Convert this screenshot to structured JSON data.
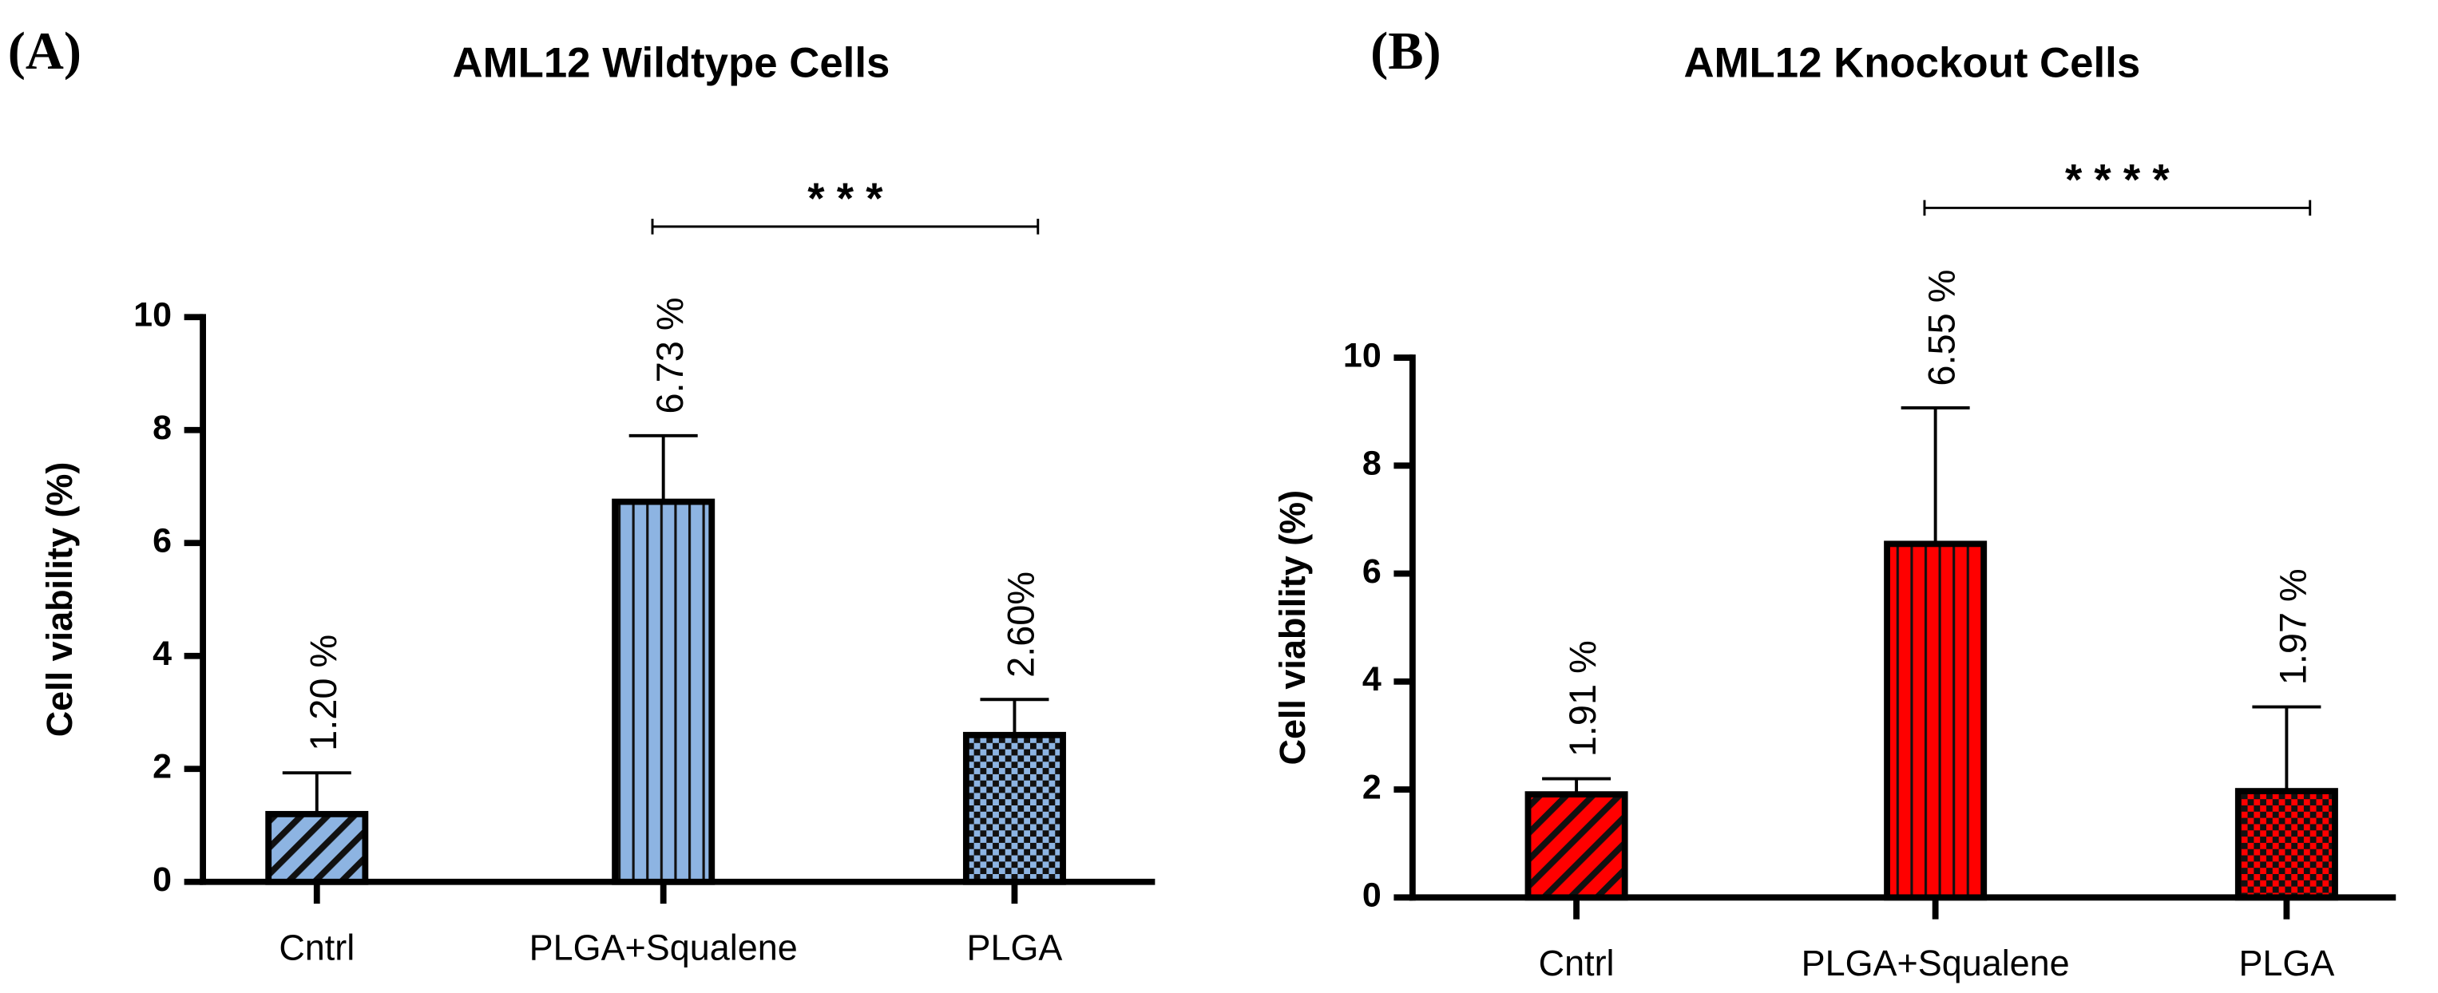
{
  "chart_data": [
    {
      "type": "bar",
      "panel_label": "(A)",
      "title": "AML12 Wildtype Cells",
      "ylabel": "Cell viability (%)",
      "categories": [
        "Cntrl",
        "PLGA+Squalene",
        "PLGA"
      ],
      "values": [
        1.2,
        6.73,
        2.6
      ],
      "errors": [
        0.73,
        1.17,
        0.63
      ],
      "value_labels": [
        "1.20 %",
        "6.73 %",
        "2.60%"
      ],
      "color": "#8db4e2",
      "patterns": [
        "diagonal",
        "vertical",
        "checker"
      ],
      "ylim": [
        0,
        10
      ],
      "yticks": [
        0,
        2,
        4,
        6,
        8,
        10
      ],
      "significance": {
        "from": 1,
        "to": 2,
        "label": "* * *"
      }
    },
    {
      "type": "bar",
      "panel_label": "(B)",
      "title": "AML12 Knockout Cells",
      "ylabel": "Cell viability (%)",
      "categories": [
        "Cntrl",
        "PLGA+Squalene",
        "PLGA"
      ],
      "values": [
        1.91,
        6.55,
        1.97
      ],
      "errors": [
        0.29,
        2.52,
        1.56
      ],
      "value_labels": [
        "1.91 %",
        "6.55 %",
        "1.97 %"
      ],
      "color": "#ff0000",
      "patterns": [
        "diagonal",
        "vertical",
        "checker"
      ],
      "ylim": [
        0,
        10
      ],
      "yticks": [
        0,
        2,
        4,
        6,
        8,
        10
      ],
      "significance": {
        "from": 1,
        "to": 2,
        "label": "* * * *"
      }
    }
  ]
}
